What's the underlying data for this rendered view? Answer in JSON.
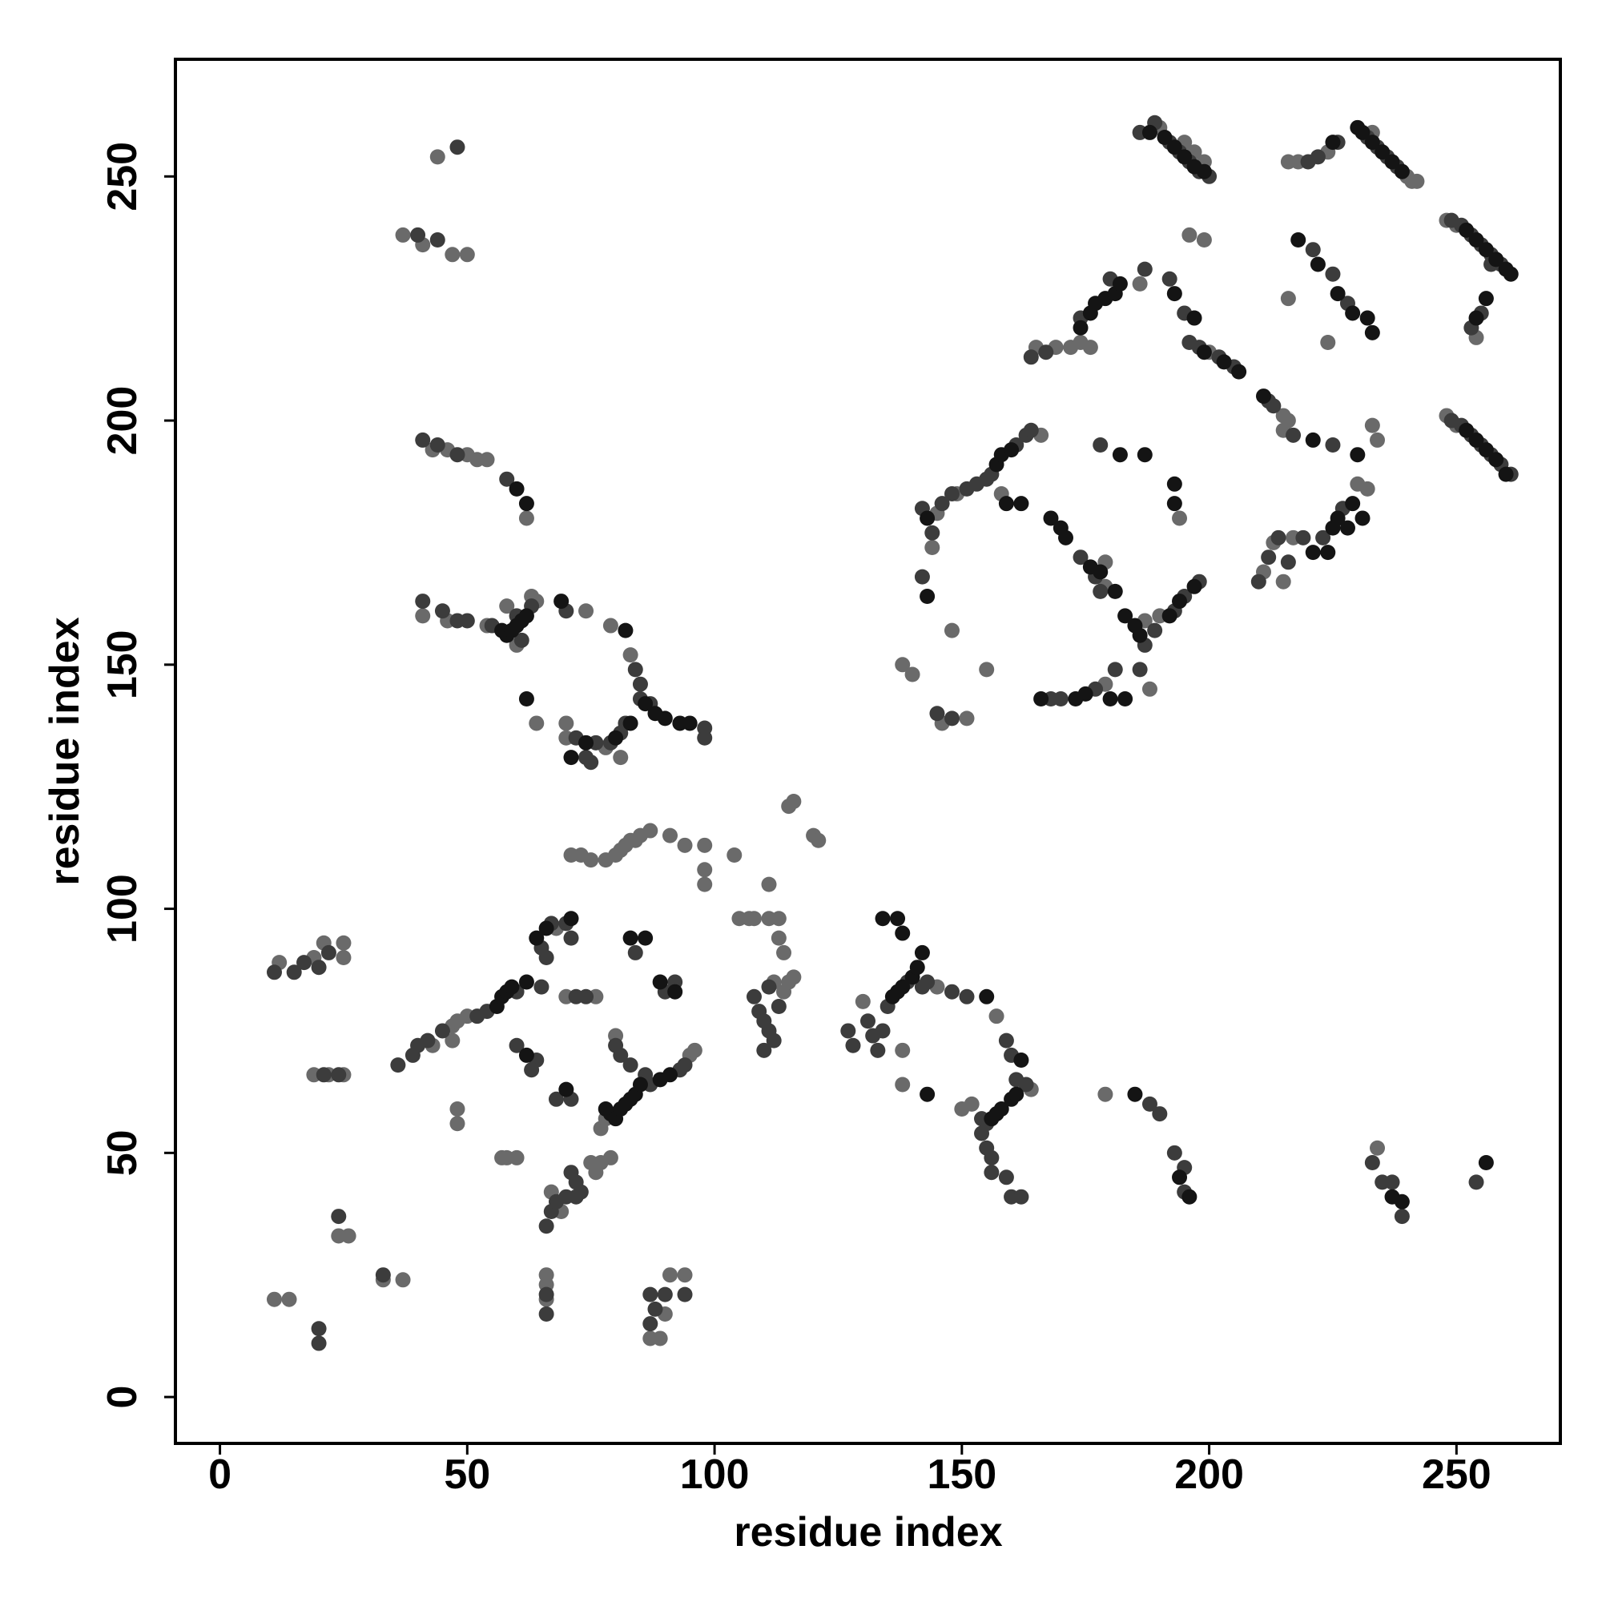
{
  "chart_data": {
    "type": "scatter",
    "xlabel": "residue index",
    "ylabel": "residue index",
    "xlim": [
      -9,
      271
    ],
    "ylim": [
      -9.5,
      274
    ],
    "xticks": [
      0,
      50,
      100,
      150,
      200,
      250
    ],
    "yticks": [
      0,
      50,
      100,
      150,
      200,
      250
    ],
    "series": [
      {
        "color": "#6a6a6a",
        "x": [
          190,
          195,
          197,
          199,
          240,
          241,
          242,
          233,
          216,
          218,
          224,
          248,
          250,
          254,
          248,
          250,
          200,
          215,
          216,
          215,
          233,
          234,
          216,
          224,
          186,
          196,
          199,
          165,
          169,
          172,
          174,
          176,
          144,
          145,
          149,
          166,
          158,
          179,
          188,
          179,
          138,
          140,
          146,
          151,
          148,
          155,
          187,
          190,
          194,
          179,
          230,
          232,
          211,
          213,
          215,
          217,
          43,
          46,
          50,
          52,
          54,
          62,
          37,
          41,
          47,
          50,
          44,
          41,
          46,
          54,
          63,
          64,
          58,
          60,
          74,
          79,
          83,
          70,
          64,
          81,
          78,
          70,
          71,
          73,
          75,
          78,
          80,
          81,
          82,
          83,
          84,
          85,
          87,
          91,
          94,
          98,
          98,
          98,
          104,
          105,
          108,
          111,
          111,
          113,
          113,
          114,
          115,
          116,
          120,
          121,
          107,
          12,
          19,
          21,
          25,
          25,
          43,
          47,
          48,
          50,
          68,
          70,
          76,
          80,
          77,
          78,
          95,
          96,
          75,
          76,
          77,
          79,
          58,
          60,
          67,
          69,
          48,
          48,
          47,
          114,
          115,
          116,
          112,
          130,
          145,
          138,
          138,
          157,
          164,
          152,
          150,
          179,
          234,
          11,
          14,
          19,
          22,
          25,
          24,
          26,
          33,
          37,
          66,
          66,
          66,
          87,
          89,
          90,
          91,
          94,
          57
        ],
        "y": [
          260,
          257,
          255,
          253,
          250,
          249,
          249,
          259,
          253,
          253,
          255,
          241,
          240,
          217,
          201,
          199,
          214,
          201,
          200,
          198,
          199,
          196,
          225,
          216,
          228,
          238,
          237,
          215,
          215,
          215,
          216,
          215,
          174,
          181,
          185,
          197,
          185,
          171,
          145,
          146,
          150,
          148,
          138,
          139,
          157,
          149,
          159,
          160,
          180,
          166,
          187,
          186,
          169,
          175,
          167,
          176,
          194,
          194,
          193,
          192,
          192,
          180,
          238,
          236,
          234,
          234,
          254,
          160,
          159,
          158,
          164,
          163,
          162,
          154,
          161,
          158,
          152,
          138,
          138,
          131,
          133,
          135,
          111,
          111,
          110,
          110,
          111,
          112,
          113,
          114,
          114,
          115,
          116,
          115,
          113,
          113,
          108,
          105,
          111,
          98,
          98,
          105,
          98,
          98,
          94,
          91,
          121,
          122,
          115,
          114,
          98,
          89,
          90,
          93,
          93,
          90,
          72,
          76,
          77,
          78,
          96,
          82,
          82,
          74,
          55,
          57,
          70,
          71,
          48,
          46,
          48,
          49,
          49,
          49,
          42,
          38,
          59,
          56,
          73,
          83,
          85,
          86,
          85,
          81,
          84,
          71,
          64,
          78,
          63,
          60,
          59,
          62,
          51,
          20,
          20,
          66,
          66,
          66,
          33,
          33,
          24,
          24,
          25,
          23,
          20,
          12,
          12,
          17,
          25,
          25,
          49
        ]
      },
      {
        "color": "#3c3c3c",
        "x": [
          186,
          189,
          192,
          194,
          196,
          198,
          200,
          232,
          234,
          236,
          238,
          222,
          220,
          226,
          249,
          251,
          253,
          255,
          257,
          259,
          257,
          255,
          253,
          249,
          251,
          253,
          255,
          257,
          259,
          261,
          187,
          192,
          195,
          196,
          198,
          202,
          205,
          212,
          213,
          217,
          225,
          221,
          225,
          228,
          164,
          167,
          174,
          180,
          142,
          144,
          146,
          148,
          151,
          153,
          155,
          156,
          161,
          163,
          164,
          174,
          177,
          178,
          187,
          186,
          181,
          177,
          168,
          170,
          189,
          193,
          195,
          198,
          142,
          145,
          148,
          178,
          210,
          212,
          214,
          216,
          219,
          223,
          227,
          41,
          44,
          48,
          58,
          40,
          44,
          48,
          41,
          45,
          48,
          50,
          55,
          63,
          60,
          61,
          70,
          84,
          85,
          85,
          87,
          98,
          98,
          82,
          81,
          79,
          76,
          72,
          74,
          75,
          11,
          15,
          17,
          20,
          22,
          36,
          39,
          40,
          42,
          45,
          52,
          54,
          60,
          65,
          66,
          65,
          67,
          70,
          71,
          72,
          74,
          60,
          64,
          63,
          68,
          71,
          86,
          87,
          93,
          94,
          90,
          92,
          84,
          80,
          81,
          83,
          71,
          72,
          73,
          67,
          68,
          70,
          72,
          66,
          108,
          109,
          110,
          111,
          112,
          113,
          111,
          110,
          127,
          128,
          131,
          132,
          133,
          134,
          135,
          139,
          142,
          143,
          148,
          151,
          159,
          160,
          161,
          163,
          154,
          155,
          154,
          155,
          156,
          156,
          159,
          160,
          162,
          188,
          190,
          193,
          195,
          195,
          233,
          235,
          237,
          239,
          254,
          20,
          20,
          21,
          24,
          24,
          33,
          66,
          66,
          87,
          87,
          88,
          90,
          94
        ],
        "y": [
          259,
          261,
          257,
          255,
          253,
          251,
          250,
          258,
          256,
          254,
          252,
          254,
          253,
          257,
          241,
          240,
          238,
          236,
          234,
          232,
          232,
          222,
          219,
          200,
          199,
          197,
          195,
          193,
          191,
          189,
          231,
          229,
          222,
          216,
          215,
          213,
          211,
          204,
          203,
          197,
          195,
          235,
          230,
          224,
          213,
          214,
          221,
          229,
          182,
          177,
          183,
          185,
          186,
          187,
          188,
          189,
          195,
          197,
          198,
          172,
          168,
          165,
          154,
          149,
          149,
          145,
          143,
          143,
          157,
          161,
          164,
          167,
          168,
          140,
          139,
          195,
          167,
          172,
          176,
          171,
          176,
          176,
          182,
          196,
          195,
          193,
          188,
          238,
          237,
          256,
          163,
          161,
          159,
          159,
          158,
          162,
          160,
          155,
          161,
          149,
          146,
          143,
          142,
          137,
          135,
          138,
          136,
          134,
          134,
          135,
          131,
          130,
          87,
          87,
          89,
          88,
          91,
          68,
          70,
          72,
          73,
          75,
          78,
          79,
          83,
          84,
          90,
          92,
          97,
          97,
          94,
          82,
          82,
          72,
          69,
          67,
          61,
          61,
          66,
          64,
          67,
          68,
          83,
          85,
          91,
          72,
          70,
          68,
          46,
          44,
          42,
          38,
          40,
          41,
          41,
          35,
          82,
          79,
          77,
          75,
          73,
          80,
          84,
          71,
          75,
          72,
          77,
          74,
          71,
          75,
          80,
          85,
          84,
          85,
          83,
          82,
          73,
          70,
          65,
          64,
          57,
          56,
          54,
          51,
          49,
          46,
          45,
          41,
          41,
          60,
          58,
          50,
          47,
          42,
          48,
          44,
          44,
          37,
          44,
          14,
          11,
          66,
          66,
          37,
          25,
          21,
          17,
          21,
          15,
          18,
          21,
          21
        ]
      },
      {
        "color": "#141414",
        "x": [
          191,
          193,
          195,
          197,
          199,
          188,
          230,
          231,
          233,
          235,
          237,
          239,
          225,
          252,
          254,
          256,
          258,
          260,
          261,
          256,
          254,
          252,
          254,
          256,
          258,
          260,
          193,
          197,
          199,
          203,
          206,
          211,
          221,
          230,
          218,
          222,
          226,
          229,
          232,
          233,
          174,
          176,
          177,
          179,
          181,
          182,
          143,
          157,
          158,
          160,
          159,
          162,
          168,
          170,
          171,
          176,
          178,
          181,
          183,
          185,
          186,
          193,
          193,
          182,
          187,
          173,
          175,
          180,
          183,
          166,
          192,
          194,
          197,
          143,
          221,
          224,
          225,
          226,
          228,
          229,
          231,
          60,
          62,
          57,
          58,
          59,
          60,
          61,
          62,
          69,
          82,
          86,
          88,
          90,
          93,
          95,
          83,
          80,
          74,
          71,
          62,
          56,
          57,
          58,
          59,
          62,
          64,
          66,
          71,
          83,
          86,
          89,
          92,
          78,
          79,
          80,
          81,
          82,
          83,
          84,
          85,
          89,
          91,
          70,
          62,
          134,
          137,
          138,
          140,
          141,
          142,
          136,
          137,
          138,
          143,
          155,
          156,
          157,
          158,
          160,
          161,
          162,
          185,
          194,
          196,
          237,
          239,
          256
        ],
        "y": [
          258,
          256,
          254,
          252,
          251,
          259,
          260,
          259,
          257,
          255,
          253,
          251,
          257,
          239,
          237,
          235,
          233,
          231,
          230,
          225,
          221,
          198,
          196,
          194,
          192,
          189,
          226,
          221,
          214,
          212,
          210,
          205,
          196,
          193,
          237,
          232,
          226,
          222,
          221,
          218,
          219,
          222,
          224,
          225,
          226,
          228,
          180,
          191,
          193,
          194,
          183,
          183,
          180,
          178,
          176,
          170,
          169,
          165,
          160,
          158,
          156,
          187,
          183,
          193,
          193,
          143,
          144,
          143,
          143,
          143,
          160,
          163,
          166,
          164,
          173,
          173,
          178,
          180,
          178,
          183,
          180,
          186,
          183,
          157,
          156,
          157,
          158,
          159,
          160,
          163,
          157,
          142,
          140,
          139,
          138,
          138,
          138,
          135,
          134,
          131,
          143,
          80,
          82,
          83,
          84,
          85,
          94,
          96,
          98,
          94,
          94,
          85,
          83,
          59,
          58,
          57,
          59,
          60,
          61,
          62,
          64,
          65,
          66,
          63,
          70,
          98,
          98,
          95,
          86,
          88,
          91,
          82,
          83,
          84,
          62,
          82,
          57,
          58,
          59,
          61,
          62,
          69,
          62,
          45,
          41,
          41,
          40,
          48
        ]
      }
    ]
  }
}
